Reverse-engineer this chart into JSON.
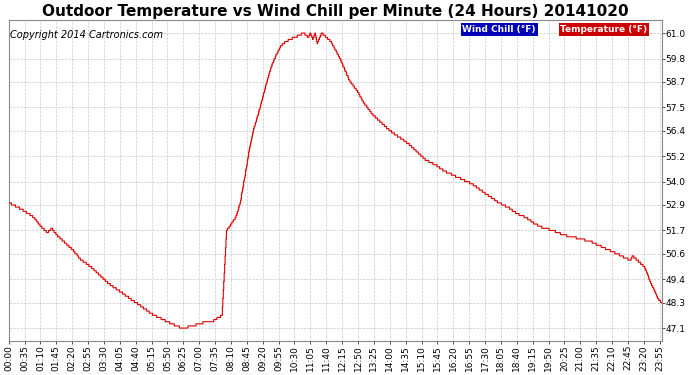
{
  "title": "Outdoor Temperature vs Wind Chill per Minute (24 Hours) 20141020",
  "copyright": "Copyright 2014 Cartronics.com",
  "legend_wind_chill": "Wind Chill (°F)",
  "legend_temperature": "Temperature (°F)",
  "yticks": [
    47.1,
    48.3,
    49.4,
    50.6,
    51.7,
    52.9,
    54.0,
    55.2,
    56.4,
    57.5,
    58.7,
    59.8,
    61.0
  ],
  "ylim": [
    46.5,
    61.6
  ],
  "xtick_labels": [
    "00:00",
    "00:35",
    "01:10",
    "01:45",
    "02:20",
    "02:55",
    "03:30",
    "04:05",
    "04:40",
    "05:15",
    "05:50",
    "06:25",
    "07:00",
    "07:35",
    "08:10",
    "08:45",
    "09:20",
    "09:55",
    "10:30",
    "11:05",
    "11:40",
    "12:15",
    "12:50",
    "13:25",
    "14:00",
    "14:35",
    "15:10",
    "15:45",
    "16:20",
    "16:55",
    "17:30",
    "18:05",
    "18:40",
    "19:15",
    "19:50",
    "20:25",
    "21:00",
    "21:35",
    "22:10",
    "22:45",
    "23:20",
    "23:55"
  ],
  "bg_color": "#ffffff",
  "grid_color": "#bbbbbb",
  "line_color": "#dd0000",
  "legend_wc_bg": "#0000bb",
  "legend_temp_bg": "#cc0000",
  "title_fontsize": 11,
  "copyright_fontsize": 7,
  "tick_fontsize": 6.5
}
